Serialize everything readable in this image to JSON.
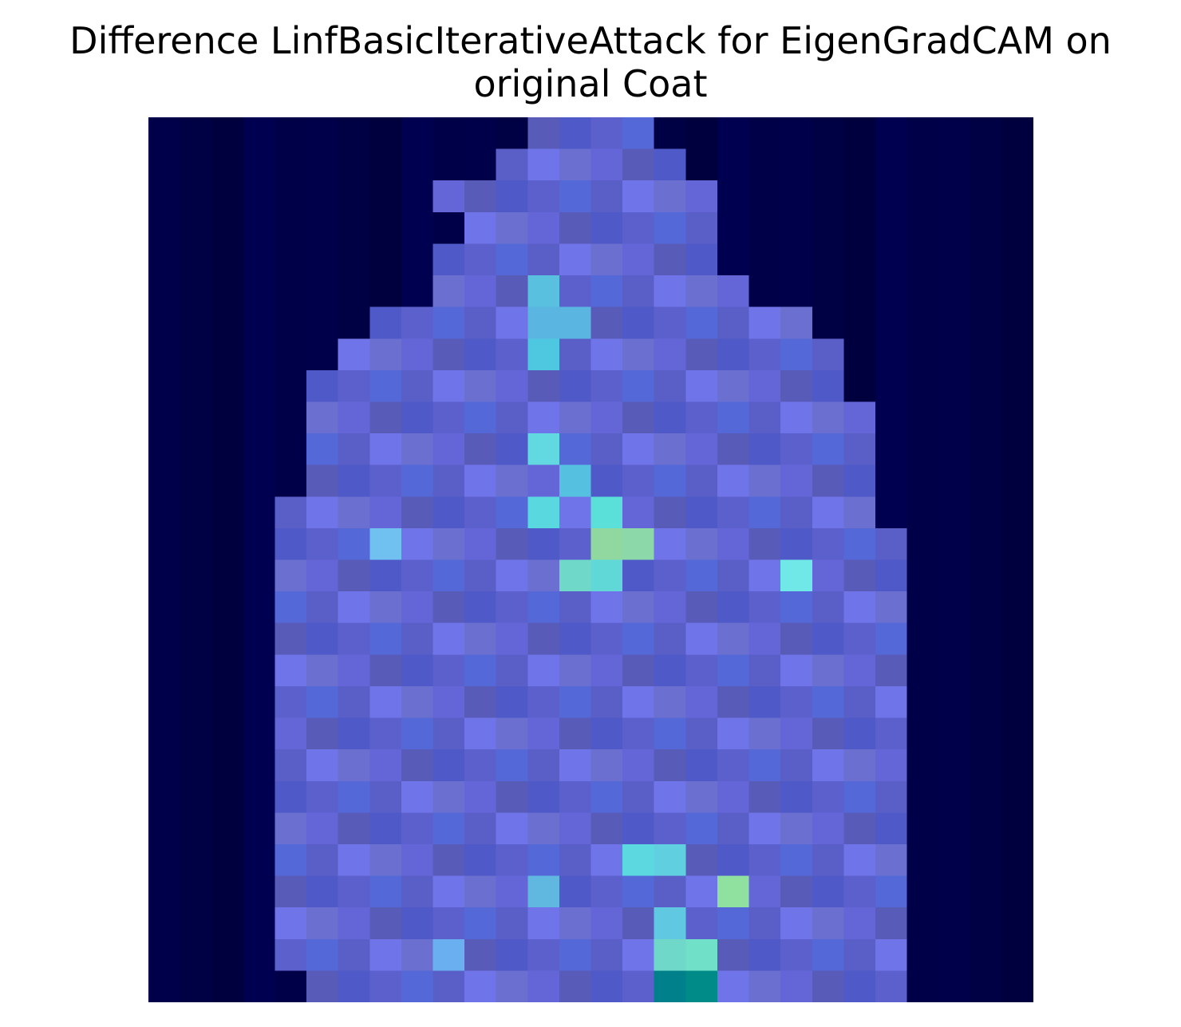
{
  "figure": {
    "title_line1": "Difference LinfBasicIterativeAttack for EigenGradCAM on",
    "title_line2": "original Coat"
  },
  "image": {
    "subject": "coat",
    "grid_cols": 28,
    "grid_rows": 28
  },
  "colors": {
    "background": "#000044",
    "body_low": "#5a5fc8",
    "body_mid": "#6f74e8",
    "highlight_cyan": "#60d8e0",
    "highlight_green": "#90d8a0"
  }
}
